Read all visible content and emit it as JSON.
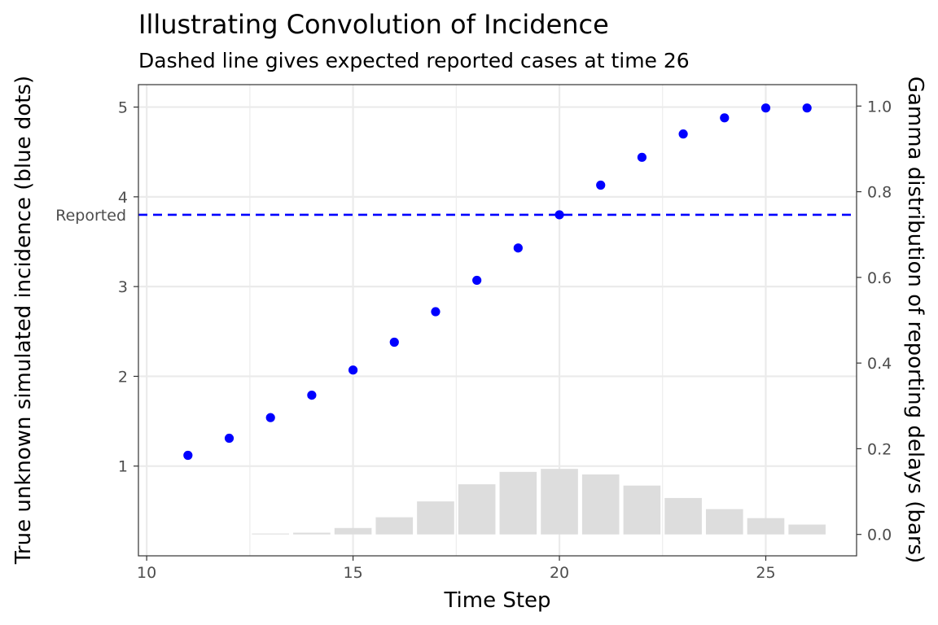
{
  "chart_data": {
    "type": "bar",
    "title": "Illustrating Convolution of Incidence",
    "subtitle": "Dashed line gives expected reported cases at time 26",
    "xlabel": "Time Step",
    "ylabel": "True unknown simulated incidence (blue dots)",
    "y2label": "Gamma distribution of reporting delays (bars)",
    "xlim": [
      9.8,
      27.2
    ],
    "ylim": [
      0.0,
      5.25
    ],
    "y2lim": [
      -0.05,
      1.05
    ],
    "x_ticks": [
      "10",
      "15",
      "20",
      "25"
    ],
    "y_ticks": [
      "1",
      "2",
      "3",
      "4",
      "5"
    ],
    "y2_ticks": [
      "0.0",
      "0.2",
      "0.4",
      "0.6",
      "0.8",
      "1.0"
    ],
    "grid": true,
    "series": [
      {
        "type": "scatter",
        "color": "#0000ff",
        "x": [
          11,
          12,
          13,
          14,
          15,
          16,
          17,
          18,
          19,
          20,
          21,
          22,
          23,
          24,
          25,
          26
        ],
        "values": [
          1.12,
          1.31,
          1.54,
          1.79,
          2.07,
          2.38,
          2.72,
          3.07,
          3.43,
          3.8,
          4.13,
          4.44,
          4.7,
          4.88,
          4.99,
          4.99
        ]
      },
      {
        "type": "bar",
        "axis": "right",
        "color": "#dddddd",
        "x": [
          13,
          14,
          15,
          16,
          17,
          18,
          19,
          20,
          21,
          22,
          23,
          24,
          25,
          26
        ],
        "values": [
          0.002,
          0.004,
          0.015,
          0.04,
          0.077,
          0.117,
          0.146,
          0.153,
          0.14,
          0.114,
          0.085,
          0.059,
          0.038,
          0.023
        ]
      }
    ],
    "reference_line": {
      "axis": "y",
      "value": 3.8,
      "label": "Reported",
      "style": "dashed",
      "color": "#0000ff"
    }
  }
}
